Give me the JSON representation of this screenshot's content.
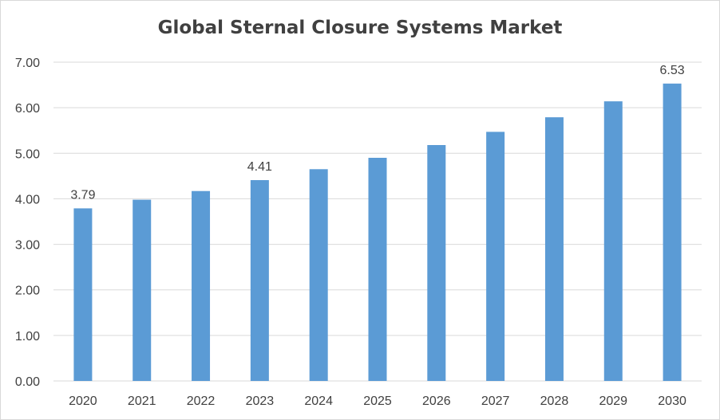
{
  "chart_data": {
    "type": "bar",
    "title": "Global Sternal Closure Systems Market",
    "xlabel": "",
    "ylabel": "",
    "categories": [
      "2020",
      "2021",
      "2022",
      "2023",
      "2024",
      "2025",
      "2026",
      "2027",
      "2028",
      "2029",
      "2030"
    ],
    "values": [
      3.79,
      3.98,
      4.17,
      4.41,
      4.65,
      4.9,
      5.18,
      5.47,
      5.79,
      6.14,
      6.53
    ],
    "data_labels": [
      {
        "category": "2020",
        "text": "3.79"
      },
      {
        "category": "2023",
        "text": "4.41"
      },
      {
        "category": "2030",
        "text": "6.53"
      }
    ],
    "ylim": [
      0,
      7
    ],
    "yticks": [
      "0.00",
      "1.00",
      "2.00",
      "3.00",
      "4.00",
      "5.00",
      "6.00",
      "7.00"
    ],
    "grid": true,
    "legend": "none",
    "colors": {
      "bar": "#5b9bd5",
      "grid": "#d9d9d9",
      "text": "#404040"
    }
  }
}
